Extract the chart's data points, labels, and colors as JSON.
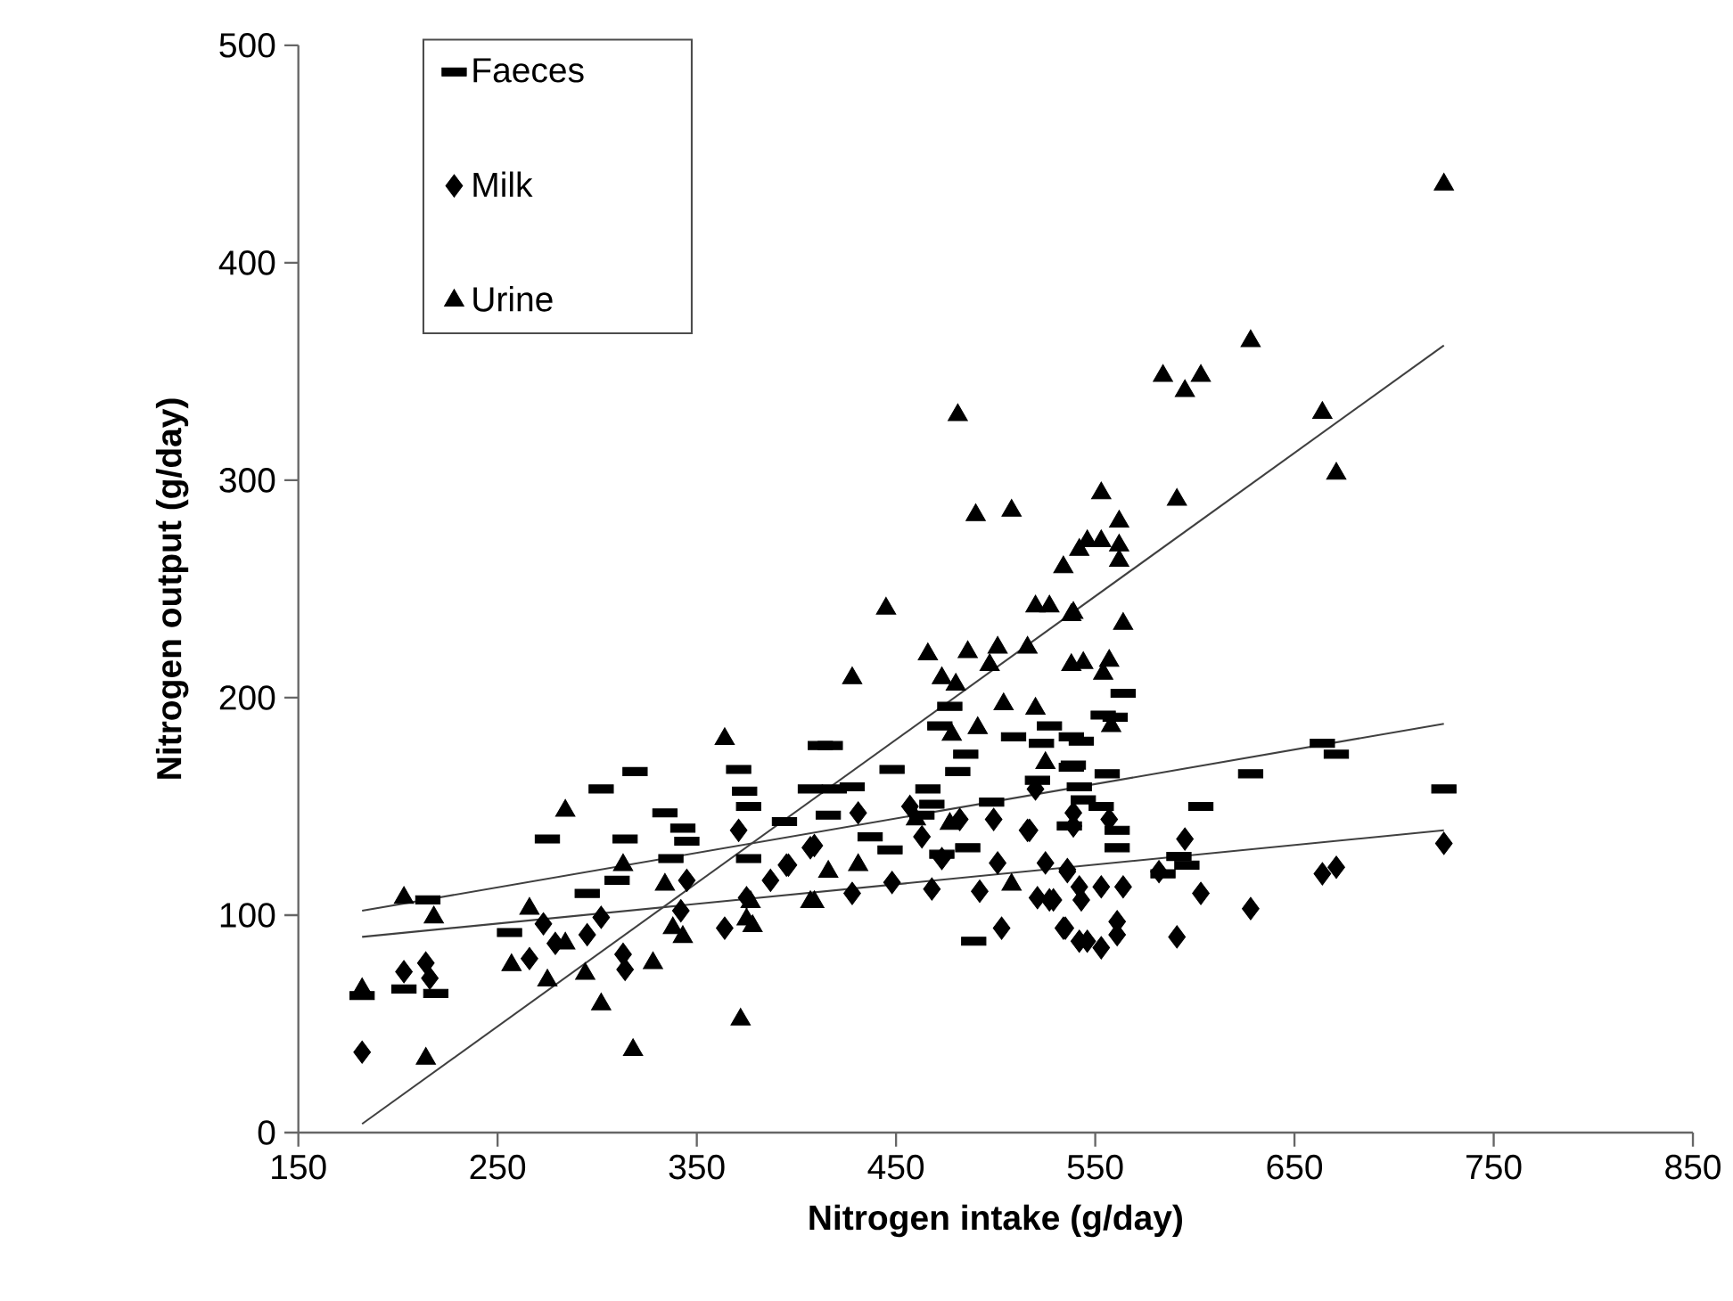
{
  "chart_data": {
    "type": "scatter",
    "xlabel": "Nitrogen intake (g/day)",
    "ylabel": "Nitrogen output (g/day)",
    "xlim": [
      150,
      850
    ],
    "xticks": [
      150,
      250,
      350,
      450,
      550,
      650,
      750,
      850
    ],
    "ylim": [
      0,
      500
    ],
    "yticks": [
      0,
      100,
      200,
      300,
      400,
      500
    ],
    "legend": "top left",
    "series": [
      {
        "name": "Faeces",
        "type": "scatter",
        "marker": "square",
        "color": "#000000",
        "x": [
          182,
          203,
          219,
          215,
          275,
          302,
          319,
          314,
          295,
          310,
          334,
          343,
          345,
          337,
          371,
          374,
          376,
          376,
          394,
          407,
          412,
          256,
          417,
          477,
          472,
          419,
          428,
          448,
          481,
          498,
          468,
          447,
          416,
          473,
          489,
          527,
          538,
          538,
          521,
          509,
          485,
          466,
          463,
          486,
          437,
          564,
          554,
          560,
          543,
          523,
          539,
          556,
          542,
          544,
          553,
          537,
          561,
          561,
          603,
          628,
          664,
          671,
          725,
          592,
          596,
          584
        ],
        "values": [
          63,
          66,
          64,
          107,
          135,
          158,
          166,
          135,
          110,
          116,
          147,
          140,
          134,
          126,
          167,
          157,
          150,
          126,
          143,
          158,
          178,
          92,
          178,
          196,
          187,
          158,
          159,
          167,
          166,
          152,
          151,
          130,
          146,
          128,
          88,
          187,
          182,
          168,
          162,
          182,
          174,
          158,
          146,
          131,
          136,
          202,
          192,
          191,
          180,
          179,
          169,
          165,
          159,
          153,
          150,
          141,
          139,
          131,
          150,
          165,
          179,
          174,
          158,
          127,
          123,
          119
        ]
      },
      {
        "name": "Milk",
        "marker": "diamond",
        "color": "#000000",
        "x": [
          182,
          203,
          214,
          216,
          266,
          273,
          279,
          295,
          302,
          313,
          314,
          345,
          342,
          364,
          375,
          371,
          387,
          396,
          409,
          431,
          407,
          395,
          428,
          448,
          468,
          473,
          501,
          517,
          499,
          492,
          525,
          536,
          521,
          529,
          503,
          534,
          542,
          463,
          457,
          482,
          725,
          664,
          671,
          628,
          603,
          591,
          595,
          582,
          564,
          553,
          542,
          543,
          536,
          527,
          516,
          535,
          546,
          553,
          561,
          561,
          539,
          539,
          520,
          557
        ],
        "values": [
          37,
          74,
          78,
          71,
          80,
          96,
          87,
          91,
          99,
          82,
          75,
          116,
          102,
          94,
          108,
          139,
          116,
          123,
          132,
          147,
          131,
          123,
          110,
          115,
          112,
          126,
          124,
          139,
          144,
          111,
          124,
          120,
          108,
          107,
          94,
          94,
          88,
          136,
          150,
          144,
          133,
          119,
          122,
          103,
          110,
          90,
          135,
          120,
          113,
          113,
          113,
          107,
          121,
          107,
          139,
          94,
          88,
          85,
          97,
          91,
          147,
          141,
          158,
          144
        ]
      },
      {
        "name": "Urine",
        "marker": "triangle",
        "color": "#000000",
        "x": [
          182,
          203,
          218,
          214,
          266,
          257,
          275,
          284,
          284,
          294,
          302,
          318,
          313,
          334,
          328,
          338,
          343,
          364,
          372,
          378,
          377,
          407,
          481,
          490,
          508,
          445,
          428,
          534,
          542,
          520,
          527,
          538,
          466,
          486,
          501,
          516,
          473,
          480,
          497,
          538,
          504,
          520,
          478,
          491,
          525,
          409,
          416,
          431,
          460,
          477,
          508,
          375,
          725,
          628,
          584,
          603,
          595,
          664,
          671,
          591,
          553,
          562,
          546,
          553,
          562,
          562,
          539,
          564,
          544,
          557,
          554,
          558
        ],
        "values": [
          66,
          108,
          99,
          34,
          103,
          77,
          70,
          148,
          87,
          73,
          59,
          38,
          123,
          114,
          78,
          94,
          90,
          181,
          52,
          95,
          106,
          106,
          330,
          284,
          286,
          241,
          209,
          260,
          268,
          242,
          242,
          238,
          220,
          221,
          223,
          223,
          209,
          206,
          215,
          215,
          197,
          195,
          183,
          186,
          170,
          106,
          120,
          123,
          144,
          142,
          114,
          98,
          436,
          364,
          348,
          348,
          341,
          331,
          303,
          291,
          294,
          281,
          272,
          272,
          270,
          263,
          239,
          234,
          216,
          217,
          211,
          187
        ]
      },
      {
        "type": "line",
        "color": "#404040",
        "x": [
          182,
          725
        ],
        "values": [
          102,
          188
        ]
      },
      {
        "type": "line",
        "color": "#404040",
        "x": [
          182,
          725
        ],
        "values": [
          90,
          139
        ]
      },
      {
        "type": "line",
        "color": "#404040",
        "x": [
          182,
          725
        ],
        "values": [
          4,
          362
        ]
      }
    ]
  }
}
